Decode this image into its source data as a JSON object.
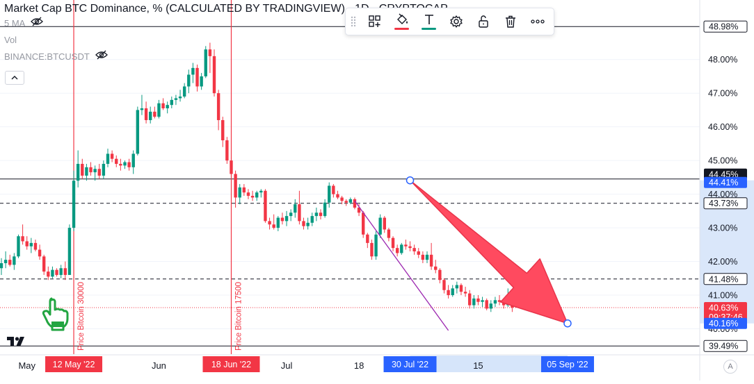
{
  "legend": {
    "title": "Market Cap BTC Dominance, % (CALCULATED BY TRADINGVIEW) · 1D · CRYPTOCAP",
    "indicators": [
      {
        "label": "5 MA"
      },
      {
        "label": "Vol"
      },
      {
        "label": "BINANCE:BTCUSDT"
      }
    ]
  },
  "toolbar": {
    "items": [
      "drag-handle",
      "templates",
      "fill-color",
      "text-color",
      "settings",
      "lock",
      "delete",
      "more"
    ],
    "fill_color": "#f23645",
    "text_color": "#089981"
  },
  "colors": {
    "up": "#089981",
    "down": "#f23645",
    "marker": "#f23645",
    "arrow": "#ff4a5f",
    "trendline": "#9c27b0",
    "range": "#bbd4f6",
    "axis_text": "#131722"
  },
  "chart_data": {
    "type": "candlestick",
    "symbol": "CRYPTOCAP:BTC.D",
    "ylim": [
      39.35,
      49.2
    ],
    "y_ticks": [
      40.0,
      41.0,
      42.0,
      43.0,
      44.0,
      45.0,
      46.0,
      47.0,
      48.0
    ],
    "x_ticks": [
      "May",
      "Jun",
      "Jul",
      "18",
      "15"
    ],
    "price_labels": [
      {
        "value": 48.98,
        "text": "48.98%",
        "style": "outline"
      },
      {
        "value": 44.45,
        "text": "44.45%",
        "style": "dark"
      },
      {
        "value": 44.41,
        "text": "44.41%",
        "style": "blue"
      },
      {
        "value": 43.73,
        "text": "43.73%",
        "style": "outline"
      },
      {
        "value": 41.48,
        "text": "41.48%",
        "style": "outline"
      },
      {
        "value": 40.63,
        "text": "40.63%",
        "style": "red",
        "countdown": "09:37:46"
      },
      {
        "value": 40.16,
        "text": "40.16%",
        "style": "blue"
      },
      {
        "value": 39.49,
        "text": "39.49%",
        "style": "outline"
      }
    ],
    "horizontal_lines": [
      {
        "value": 48.98,
        "style": "solid"
      },
      {
        "value": 44.45,
        "style": "solid"
      },
      {
        "value": 43.73,
        "style": "dashed"
      },
      {
        "value": 41.48,
        "style": "dashed"
      },
      {
        "value": 39.49,
        "style": "solid"
      }
    ],
    "current_price": 40.63,
    "vertical_markers": [
      {
        "date": "12 May '22",
        "note": "Price Bitcoin 30000"
      },
      {
        "date": "18 Jun '22",
        "note": "Price Bitcoin 17500"
      }
    ],
    "date_range": {
      "start": "30 Jul '22",
      "end": "05 Sep '22",
      "start_price": 44.41,
      "end_price": 40.16
    },
    "trendline": {
      "start": {
        "date": "17 Jul '22",
        "value": 43.8
      },
      "end": {
        "date": "08 Aug '22",
        "value": 39.95
      }
    },
    "candles": [
      {
        "d": "2022-04-25",
        "o": 41.8,
        "h": 42.1,
        "l": 41.6,
        "c": 41.95
      },
      {
        "d": "2022-04-26",
        "o": 41.95,
        "h": 42.3,
        "l": 41.8,
        "c": 42.05
      },
      {
        "d": "2022-04-27",
        "o": 42.05,
        "h": 42.2,
        "l": 41.85,
        "c": 41.9
      },
      {
        "d": "2022-04-28",
        "o": 41.9,
        "h": 42.25,
        "l": 41.75,
        "c": 42.15
      },
      {
        "d": "2022-04-29",
        "o": 42.15,
        "h": 42.8,
        "l": 42.1,
        "c": 42.75
      },
      {
        "d": "2022-04-30",
        "o": 42.75,
        "h": 43.1,
        "l": 42.5,
        "c": 42.6
      },
      {
        "d": "2022-05-01",
        "o": 42.6,
        "h": 42.75,
        "l": 42.35,
        "c": 42.45
      },
      {
        "d": "2022-05-02",
        "o": 42.45,
        "h": 42.7,
        "l": 42.25,
        "c": 42.55
      },
      {
        "d": "2022-05-03",
        "o": 42.55,
        "h": 42.65,
        "l": 42.3,
        "c": 42.35
      },
      {
        "d": "2022-05-04",
        "o": 42.35,
        "h": 42.5,
        "l": 42.05,
        "c": 42.15
      },
      {
        "d": "2022-05-05",
        "o": 42.15,
        "h": 42.2,
        "l": 41.6,
        "c": 41.7
      },
      {
        "d": "2022-05-06",
        "o": 41.7,
        "h": 41.85,
        "l": 41.45,
        "c": 41.55
      },
      {
        "d": "2022-05-07",
        "o": 41.55,
        "h": 41.85,
        "l": 41.5,
        "c": 41.75
      },
      {
        "d": "2022-05-08",
        "o": 41.75,
        "h": 41.8,
        "l": 41.55,
        "c": 41.6
      },
      {
        "d": "2022-05-09",
        "o": 41.6,
        "h": 41.9,
        "l": 41.5,
        "c": 41.8
      },
      {
        "d": "2022-05-10",
        "o": 41.8,
        "h": 42.0,
        "l": 41.45,
        "c": 41.6
      },
      {
        "d": "2022-05-11",
        "o": 41.6,
        "h": 43.1,
        "l": 41.6,
        "c": 43.0
      },
      {
        "d": "2022-05-12",
        "o": 43.0,
        "h": 44.7,
        "l": 42.9,
        "c": 44.4
      },
      {
        "d": "2022-05-13",
        "o": 44.4,
        "h": 45.3,
        "l": 44.2,
        "c": 44.9
      },
      {
        "d": "2022-05-14",
        "o": 44.9,
        "h": 45.05,
        "l": 44.45,
        "c": 44.55
      },
      {
        "d": "2022-05-15",
        "o": 44.55,
        "h": 44.9,
        "l": 44.4,
        "c": 44.8
      },
      {
        "d": "2022-05-16",
        "o": 44.8,
        "h": 44.95,
        "l": 44.55,
        "c": 44.65
      },
      {
        "d": "2022-05-17",
        "o": 44.65,
        "h": 44.85,
        "l": 44.4,
        "c": 44.75
      },
      {
        "d": "2022-05-18",
        "o": 44.75,
        "h": 44.9,
        "l": 44.45,
        "c": 44.55
      },
      {
        "d": "2022-05-19",
        "o": 44.55,
        "h": 45.0,
        "l": 44.45,
        "c": 44.9
      },
      {
        "d": "2022-05-20",
        "o": 44.9,
        "h": 45.35,
        "l": 44.8,
        "c": 45.2
      },
      {
        "d": "2022-05-21",
        "o": 45.2,
        "h": 45.3,
        "l": 44.95,
        "c": 45.05
      },
      {
        "d": "2022-05-22",
        "o": 45.05,
        "h": 45.15,
        "l": 44.8,
        "c": 44.9
      },
      {
        "d": "2022-05-23",
        "o": 44.9,
        "h": 45.05,
        "l": 44.7,
        "c": 44.85
      },
      {
        "d": "2022-05-24",
        "o": 44.85,
        "h": 45.0,
        "l": 44.75,
        "c": 44.95
      },
      {
        "d": "2022-05-25",
        "o": 44.95,
        "h": 45.05,
        "l": 44.7,
        "c": 44.8
      },
      {
        "d": "2022-05-26",
        "o": 44.8,
        "h": 45.3,
        "l": 44.6,
        "c": 45.2
      },
      {
        "d": "2022-05-27",
        "o": 45.2,
        "h": 46.6,
        "l": 45.15,
        "c": 46.5
      },
      {
        "d": "2022-05-28",
        "o": 46.5,
        "h": 46.95,
        "l": 46.35,
        "c": 46.55
      },
      {
        "d": "2022-05-29",
        "o": 46.55,
        "h": 46.75,
        "l": 46.1,
        "c": 46.2
      },
      {
        "d": "2022-05-30",
        "o": 46.2,
        "h": 46.6,
        "l": 46.1,
        "c": 46.45
      },
      {
        "d": "2022-05-31",
        "o": 46.45,
        "h": 46.6,
        "l": 46.25,
        "c": 46.3
      },
      {
        "d": "2022-06-01",
        "o": 46.3,
        "h": 46.8,
        "l": 46.25,
        "c": 46.7
      },
      {
        "d": "2022-06-02",
        "o": 46.7,
        "h": 46.85,
        "l": 46.5,
        "c": 46.55
      },
      {
        "d": "2022-06-03",
        "o": 46.55,
        "h": 46.75,
        "l": 46.4,
        "c": 46.65
      },
      {
        "d": "2022-06-04",
        "o": 46.65,
        "h": 46.9,
        "l": 46.55,
        "c": 46.8
      },
      {
        "d": "2022-06-05",
        "o": 46.8,
        "h": 46.95,
        "l": 46.65,
        "c": 46.85
      },
      {
        "d": "2022-06-06",
        "o": 46.85,
        "h": 47.1,
        "l": 46.75,
        "c": 46.9
      },
      {
        "d": "2022-06-07",
        "o": 46.9,
        "h": 47.3,
        "l": 46.85,
        "c": 47.2
      },
      {
        "d": "2022-06-08",
        "o": 47.2,
        "h": 47.7,
        "l": 47.0,
        "c": 47.55
      },
      {
        "d": "2022-06-09",
        "o": 47.55,
        "h": 47.9,
        "l": 47.3,
        "c": 47.75
      },
      {
        "d": "2022-06-10",
        "o": 47.75,
        "h": 47.85,
        "l": 47.05,
        "c": 47.2
      },
      {
        "d": "2022-06-11",
        "o": 47.2,
        "h": 47.6,
        "l": 47.1,
        "c": 47.5
      },
      {
        "d": "2022-06-12",
        "o": 47.5,
        "h": 48.4,
        "l": 47.45,
        "c": 48.3
      },
      {
        "d": "2022-06-13",
        "o": 48.3,
        "h": 48.5,
        "l": 47.6,
        "c": 48.1
      },
      {
        "d": "2022-06-14",
        "o": 48.1,
        "h": 48.3,
        "l": 46.9,
        "c": 47.0
      },
      {
        "d": "2022-06-15",
        "o": 47.0,
        "h": 47.1,
        "l": 45.9,
        "c": 46.2
      },
      {
        "d": "2022-06-16",
        "o": 46.2,
        "h": 46.3,
        "l": 45.4,
        "c": 45.6
      },
      {
        "d": "2022-06-17",
        "o": 45.6,
        "h": 45.7,
        "l": 44.9,
        "c": 45.0
      },
      {
        "d": "2022-06-18",
        "o": 45.0,
        "h": 45.1,
        "l": 44.5,
        "c": 44.6
      },
      {
        "d": "2022-06-19",
        "o": 44.6,
        "h": 44.7,
        "l": 43.6,
        "c": 43.9
      },
      {
        "d": "2022-06-20",
        "o": 43.9,
        "h": 44.3,
        "l": 43.7,
        "c": 44.2
      },
      {
        "d": "2022-06-21",
        "o": 44.2,
        "h": 44.3,
        "l": 43.95,
        "c": 44.05
      },
      {
        "d": "2022-06-22",
        "o": 44.05,
        "h": 44.15,
        "l": 43.85,
        "c": 43.95
      },
      {
        "d": "2022-06-23",
        "o": 43.95,
        "h": 44.1,
        "l": 43.8,
        "c": 43.9
      },
      {
        "d": "2022-06-24",
        "o": 43.9,
        "h": 44.1,
        "l": 43.8,
        "c": 44.05
      },
      {
        "d": "2022-06-25",
        "o": 44.05,
        "h": 44.15,
        "l": 43.9,
        "c": 44.1
      },
      {
        "d": "2022-06-26",
        "o": 44.1,
        "h": 44.15,
        "l": 43.15,
        "c": 43.2
      },
      {
        "d": "2022-06-27",
        "o": 43.2,
        "h": 43.3,
        "l": 42.95,
        "c": 43.1
      },
      {
        "d": "2022-06-28",
        "o": 43.1,
        "h": 43.4,
        "l": 42.95,
        "c": 43.0
      },
      {
        "d": "2022-06-29",
        "o": 43.0,
        "h": 43.35,
        "l": 42.9,
        "c": 43.3
      },
      {
        "d": "2022-06-30",
        "o": 43.3,
        "h": 43.45,
        "l": 43.1,
        "c": 43.2
      },
      {
        "d": "2022-07-01",
        "o": 43.2,
        "h": 43.5,
        "l": 43.05,
        "c": 43.35
      },
      {
        "d": "2022-07-02",
        "o": 43.35,
        "h": 43.55,
        "l": 43.2,
        "c": 43.45
      },
      {
        "d": "2022-07-03",
        "o": 43.45,
        "h": 43.85,
        "l": 43.3,
        "c": 43.7
      },
      {
        "d": "2022-07-04",
        "o": 43.7,
        "h": 44.1,
        "l": 43.1,
        "c": 43.2
      },
      {
        "d": "2022-07-05",
        "o": 43.2,
        "h": 43.3,
        "l": 42.95,
        "c": 43.05
      },
      {
        "d": "2022-07-06",
        "o": 43.05,
        "h": 43.3,
        "l": 42.95,
        "c": 43.15
      },
      {
        "d": "2022-07-07",
        "o": 43.15,
        "h": 43.45,
        "l": 43.05,
        "c": 43.35
      },
      {
        "d": "2022-07-08",
        "o": 43.35,
        "h": 43.6,
        "l": 43.2,
        "c": 43.45
      },
      {
        "d": "2022-07-09",
        "o": 43.45,
        "h": 43.55,
        "l": 43.25,
        "c": 43.35
      },
      {
        "d": "2022-07-10",
        "o": 43.35,
        "h": 43.85,
        "l": 43.3,
        "c": 43.75
      },
      {
        "d": "2022-07-11",
        "o": 43.75,
        "h": 44.35,
        "l": 43.6,
        "c": 44.25
      },
      {
        "d": "2022-07-12",
        "o": 44.25,
        "h": 44.3,
        "l": 43.9,
        "c": 44.0
      },
      {
        "d": "2022-07-13",
        "o": 44.0,
        "h": 44.1,
        "l": 43.85,
        "c": 43.9
      },
      {
        "d": "2022-07-14",
        "o": 43.9,
        "h": 43.95,
        "l": 43.7,
        "c": 43.8
      },
      {
        "d": "2022-07-15",
        "o": 43.8,
        "h": 43.85,
        "l": 43.65,
        "c": 43.75
      },
      {
        "d": "2022-07-16",
        "o": 43.75,
        "h": 43.9,
        "l": 43.7,
        "c": 43.85
      },
      {
        "d": "2022-07-17",
        "o": 43.85,
        "h": 43.9,
        "l": 43.55,
        "c": 43.6
      },
      {
        "d": "2022-07-18",
        "o": 43.6,
        "h": 43.7,
        "l": 43.35,
        "c": 43.45
      },
      {
        "d": "2022-07-19",
        "o": 43.45,
        "h": 43.5,
        "l": 42.7,
        "c": 42.8
      },
      {
        "d": "2022-07-20",
        "o": 42.8,
        "h": 42.85,
        "l": 42.4,
        "c": 42.55
      },
      {
        "d": "2022-07-21",
        "o": 42.55,
        "h": 42.65,
        "l": 42.05,
        "c": 42.15
      },
      {
        "d": "2022-07-22",
        "o": 42.15,
        "h": 42.9,
        "l": 42.05,
        "c": 42.8
      },
      {
        "d": "2022-07-23",
        "o": 42.8,
        "h": 43.4,
        "l": 42.7,
        "c": 43.3
      },
      {
        "d": "2022-07-24",
        "o": 43.3,
        "h": 43.35,
        "l": 42.85,
        "c": 42.95
      },
      {
        "d": "2022-07-25",
        "o": 42.95,
        "h": 43.0,
        "l": 42.6,
        "c": 42.7
      },
      {
        "d": "2022-07-26",
        "o": 42.7,
        "h": 42.75,
        "l": 42.3,
        "c": 42.4
      },
      {
        "d": "2022-07-27",
        "o": 42.4,
        "h": 42.5,
        "l": 42.15,
        "c": 42.25
      },
      {
        "d": "2022-07-28",
        "o": 42.25,
        "h": 42.55,
        "l": 42.2,
        "c": 42.5
      },
      {
        "d": "2022-07-29",
        "o": 42.5,
        "h": 42.65,
        "l": 42.35,
        "c": 42.45
      },
      {
        "d": "2022-07-30",
        "o": 42.45,
        "h": 42.6,
        "l": 42.3,
        "c": 42.4
      },
      {
        "d": "2022-07-31",
        "o": 42.4,
        "h": 42.5,
        "l": 42.2,
        "c": 42.3
      },
      {
        "d": "2022-08-01",
        "o": 42.3,
        "h": 42.4,
        "l": 42.1,
        "c": 42.2
      },
      {
        "d": "2022-08-02",
        "o": 42.2,
        "h": 42.3,
        "l": 41.95,
        "c": 42.05
      },
      {
        "d": "2022-08-03",
        "o": 42.05,
        "h": 42.3,
        "l": 41.95,
        "c": 42.2
      },
      {
        "d": "2022-08-04",
        "o": 42.2,
        "h": 42.55,
        "l": 41.75,
        "c": 41.85
      },
      {
        "d": "2022-08-05",
        "o": 41.85,
        "h": 42.05,
        "l": 41.65,
        "c": 41.75
      },
      {
        "d": "2022-08-06",
        "o": 41.75,
        "h": 41.8,
        "l": 41.35,
        "c": 41.45
      },
      {
        "d": "2022-08-07",
        "o": 41.45,
        "h": 41.5,
        "l": 41.05,
        "c": 41.15
      },
      {
        "d": "2022-08-08",
        "o": 41.15,
        "h": 41.3,
        "l": 40.9,
        "c": 41.0
      },
      {
        "d": "2022-08-09",
        "o": 41.0,
        "h": 41.3,
        "l": 40.95,
        "c": 41.2
      },
      {
        "d": "2022-08-10",
        "o": 41.2,
        "h": 41.4,
        "l": 41.05,
        "c": 41.3
      },
      {
        "d": "2022-08-11",
        "o": 41.3,
        "h": 41.35,
        "l": 41.0,
        "c": 41.1
      },
      {
        "d": "2022-08-12",
        "o": 41.1,
        "h": 41.25,
        "l": 40.95,
        "c": 41.05
      },
      {
        "d": "2022-08-13",
        "o": 41.05,
        "h": 41.15,
        "l": 40.6,
        "c": 40.7
      },
      {
        "d": "2022-08-14",
        "o": 40.7,
        "h": 41.0,
        "l": 40.6,
        "c": 40.9
      },
      {
        "d": "2022-08-15",
        "o": 40.9,
        "h": 41.0,
        "l": 40.7,
        "c": 40.8
      },
      {
        "d": "2022-08-16",
        "o": 40.8,
        "h": 40.95,
        "l": 40.65,
        "c": 40.85
      },
      {
        "d": "2022-08-17",
        "o": 40.85,
        "h": 40.9,
        "l": 40.55,
        "c": 40.6
      },
      {
        "d": "2022-08-18",
        "o": 40.6,
        "h": 40.85,
        "l": 40.5,
        "c": 40.75
      },
      {
        "d": "2022-08-19",
        "o": 40.75,
        "h": 40.95,
        "l": 40.65,
        "c": 40.85
      },
      {
        "d": "2022-08-20",
        "o": 40.85,
        "h": 41.0,
        "l": 40.7,
        "c": 40.8
      },
      {
        "d": "2022-08-21",
        "o": 40.8,
        "h": 40.9,
        "l": 40.6,
        "c": 40.7
      },
      {
        "d": "2022-08-22",
        "o": 40.7,
        "h": 41.2,
        "l": 40.65,
        "c": 40.95
      },
      {
        "d": "2022-08-23",
        "o": 40.95,
        "h": 41.1,
        "l": 40.5,
        "c": 40.63
      }
    ]
  }
}
